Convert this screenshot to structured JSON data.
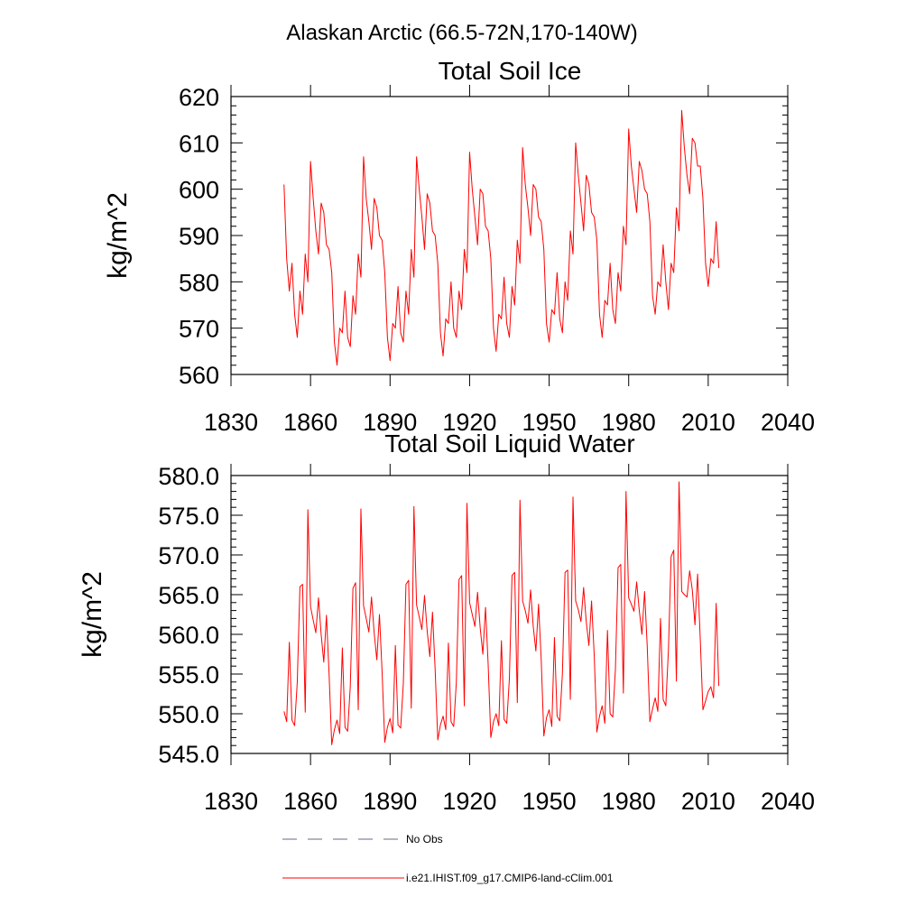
{
  "figure_title": "Alaskan Arctic (66.5-72N,170-140W)",
  "legend": {
    "entries": [
      {
        "label": "No Obs",
        "color": "#6a6a8a",
        "style": "dashed"
      },
      {
        "label": "i.e21.IHIST.f09_g17.CMIP6-land-cClim.001",
        "color": "#ff0000",
        "style": "solid"
      }
    ]
  },
  "chart_data": [
    {
      "type": "line",
      "title": "Total Soil Ice",
      "xlabel": "",
      "ylabel": "kg/m^2",
      "xlim": [
        1830,
        2040
      ],
      "ylim": [
        560,
        620
      ],
      "x_ticks": [
        1830,
        1860,
        1890,
        1920,
        1950,
        1980,
        2010,
        2040
      ],
      "x_tick_labels": [
        "1830",
        "1860",
        "1890",
        "1920",
        "1950",
        "1980",
        "2010",
        "2040"
      ],
      "y_ticks": [
        560,
        570,
        580,
        590,
        600,
        610,
        620
      ],
      "y_tick_labels": [
        "560",
        "570",
        "580",
        "590",
        "600",
        "610",
        "620"
      ],
      "grid": false,
      "series": [
        {
          "color": "#ff0000",
          "x": [
            1850,
            1851,
            1852,
            1853,
            1854,
            1855,
            1856,
            1857,
            1858,
            1859,
            1860,
            1861,
            1862,
            1863,
            1864,
            1865,
            1866,
            1867,
            1868,
            1869,
            1870,
            1871,
            1872,
            1873,
            1874,
            1875,
            1876,
            1877,
            1878,
            1879,
            1880,
            1881,
            1882,
            1883,
            1884,
            1885,
            1886,
            1887,
            1888,
            1889,
            1890,
            1891,
            1892,
            1893,
            1894,
            1895,
            1896,
            1897,
            1898,
            1899,
            1900,
            1901,
            1902,
            1903,
            1904,
            1905,
            1906,
            1907,
            1908,
            1909,
            1910,
            1911,
            1912,
            1913,
            1914,
            1915,
            1916,
            1917,
            1918,
            1919,
            1920,
            1921,
            1922,
            1923,
            1924,
            1925,
            1926,
            1927,
            1928,
            1929,
            1930,
            1931,
            1932,
            1933,
            1934,
            1935,
            1936,
            1937,
            1938,
            1939,
            1940,
            1941,
            1942,
            1943,
            1944,
            1945,
            1946,
            1947,
            1948,
            1949,
            1950,
            1951,
            1952,
            1953,
            1954,
            1955,
            1956,
            1957,
            1958,
            1959,
            1960,
            1961,
            1962,
            1963,
            1964,
            1965,
            1966,
            1967,
            1968,
            1969,
            1970,
            1971,
            1972,
            1973,
            1974,
            1975,
            1976,
            1977,
            1978,
            1979,
            1980,
            1981,
            1982,
            1983,
            1984,
            1985,
            1986,
            1987,
            1988,
            1989,
            1990,
            1991,
            1992,
            1993,
            1994,
            1995,
            1996,
            1997,
            1998,
            1999,
            2000,
            2001,
            2002,
            2003,
            2004,
            2005,
            2006,
            2007,
            2008,
            2009,
            2010,
            2011,
            2012,
            2013,
            2014
          ],
          "y": [
            601,
            585,
            578,
            584,
            573,
            568,
            578,
            573,
            586,
            580,
            606,
            598,
            591,
            586,
            597,
            595,
            588,
            587,
            582,
            567,
            562,
            570,
            569,
            578,
            568,
            566,
            577,
            573,
            586,
            581,
            607,
            598,
            593,
            587,
            598,
            596,
            590,
            589,
            582,
            568,
            563,
            571,
            570,
            579,
            569,
            567,
            578,
            573,
            587,
            581,
            607,
            600,
            594,
            587,
            599,
            597,
            591,
            590,
            584,
            569,
            564,
            572,
            571,
            580,
            570,
            568,
            578,
            574,
            587,
            582,
            608,
            600,
            594,
            588,
            600,
            599,
            592,
            591,
            585,
            570,
            565,
            573,
            572,
            581,
            571,
            568,
            579,
            575,
            589,
            584,
            609,
            601,
            596,
            590,
            601,
            600,
            594,
            593,
            587,
            571,
            567,
            574,
            573,
            582,
            572,
            569,
            580,
            576,
            591,
            586,
            610,
            603,
            597,
            591,
            603,
            601,
            595,
            594,
            589,
            573,
            568,
            576,
            575,
            584,
            574,
            571,
            582,
            578,
            592,
            588,
            613,
            605,
            600,
            595,
            606,
            604,
            600,
            599,
            593,
            577,
            573,
            580,
            579,
            588,
            580,
            574,
            584,
            582,
            596,
            591,
            617,
            609,
            603,
            599,
            611,
            610,
            605,
            605,
            598,
            584,
            579,
            585,
            584,
            593,
            583
          ]
        }
      ]
    },
    {
      "type": "line",
      "title": "Total Soil Liquid Water",
      "xlabel": "",
      "ylabel": "kg/m^2",
      "xlim": [
        1830,
        2040
      ],
      "ylim": [
        545,
        580
      ],
      "x_ticks": [
        1830,
        1860,
        1890,
        1920,
        1950,
        1980,
        2010,
        2040
      ],
      "x_tick_labels": [
        "1830",
        "1860",
        "1890",
        "1920",
        "1950",
        "1980",
        "2010",
        "2040"
      ],
      "y_ticks": [
        545,
        550,
        555,
        560,
        565,
        570,
        575,
        580
      ],
      "y_tick_labels": [
        "545.0",
        "550.0",
        "555.0",
        "560.0",
        "565.0",
        "570.0",
        "575.0",
        "580.0"
      ],
      "grid": false,
      "series": [
        {
          "color": "#ff0000",
          "x": [
            1850,
            1851,
            1852,
            1853,
            1854,
            1855,
            1856,
            1857,
            1858,
            1859,
            1860,
            1861,
            1862,
            1863,
            1864,
            1865,
            1866,
            1867,
            1868,
            1869,
            1870,
            1871,
            1872,
            1873,
            1874,
            1875,
            1876,
            1877,
            1878,
            1879,
            1880,
            1881,
            1882,
            1883,
            1884,
            1885,
            1886,
            1887,
            1888,
            1889,
            1890,
            1891,
            1892,
            1893,
            1894,
            1895,
            1896,
            1897,
            1898,
            1899,
            1900,
            1901,
            1902,
            1903,
            1904,
            1905,
            1906,
            1907,
            1908,
            1909,
            1910,
            1911,
            1912,
            1913,
            1914,
            1915,
            1916,
            1917,
            1918,
            1919,
            1920,
            1921,
            1922,
            1923,
            1924,
            1925,
            1926,
            1927,
            1928,
            1929,
            1930,
            1931,
            1932,
            1933,
            1934,
            1935,
            1936,
            1937,
            1938,
            1939,
            1940,
            1941,
            1942,
            1943,
            1944,
            1945,
            1946,
            1947,
            1948,
            1949,
            1950,
            1951,
            1952,
            1953,
            1954,
            1955,
            1956,
            1957,
            1958,
            1959,
            1960,
            1961,
            1962,
            1963,
            1964,
            1965,
            1966,
            1967,
            1968,
            1969,
            1970,
            1971,
            1972,
            1973,
            1974,
            1975,
            1976,
            1977,
            1978,
            1979,
            1980,
            1981,
            1982,
            1983,
            1984,
            1985,
            1986,
            1987,
            1988,
            1989,
            1990,
            1991,
            1992,
            1993,
            1994,
            1995,
            1996,
            1997,
            1998,
            1999,
            2000,
            2001,
            2002,
            2003,
            2004,
            2005,
            2006,
            2007,
            2008,
            2009,
            2010,
            2011,
            2012,
            2013,
            2014
          ],
          "y": [
            550.3,
            549.0,
            559.0,
            549.2,
            548.5,
            554.0,
            566.0,
            566.3,
            550.2,
            575.7,
            563.5,
            561.8,
            560.2,
            564.6,
            560.0,
            556.5,
            562.4,
            555.0,
            546.1,
            548.0,
            549.2,
            547.5,
            558.3,
            548.3,
            547.8,
            553.5,
            565.8,
            566.5,
            550.5,
            575.8,
            563.6,
            562.0,
            560.3,
            564.7,
            560.2,
            556.8,
            562.5,
            555.2,
            546.4,
            548.3,
            549.4,
            547.6,
            558.6,
            548.6,
            548.2,
            553.8,
            566.3,
            566.8,
            550.7,
            576.1,
            563.7,
            562.2,
            560.6,
            564.9,
            560.4,
            557.2,
            562.8,
            555.6,
            546.7,
            548.6,
            549.7,
            548.0,
            558.9,
            549.0,
            548.4,
            554.0,
            566.9,
            567.4,
            551.0,
            576.5,
            564.0,
            562.5,
            561.0,
            565.3,
            560.8,
            557.5,
            563.4,
            556.2,
            547.0,
            549.0,
            550.0,
            548.5,
            559.2,
            549.3,
            548.8,
            554.4,
            567.4,
            567.8,
            551.4,
            576.9,
            564.2,
            563.0,
            561.4,
            565.6,
            561.0,
            557.9,
            563.8,
            556.9,
            547.2,
            549.5,
            550.5,
            548.4,
            559.6,
            549.7,
            549.1,
            555.0,
            567.8,
            568.1,
            551.8,
            577.3,
            564.2,
            563.1,
            561.6,
            565.9,
            561.6,
            558.6,
            564.2,
            557.4,
            547.7,
            549.7,
            551.0,
            548.8,
            560.5,
            550.0,
            549.6,
            555.6,
            568.4,
            568.8,
            552.6,
            578.0,
            564.6,
            563.8,
            562.9,
            566.6,
            563.0,
            560.0,
            565.4,
            558.5,
            549.0,
            550.6,
            552.0,
            550.3,
            562.0,
            551.8,
            551.0,
            558.1,
            569.8,
            570.6,
            554.1,
            579.2,
            565.4,
            565.0,
            564.7,
            568.0,
            565.6,
            561.2,
            567.6,
            559.4,
            550.5,
            551.6,
            552.8,
            553.4,
            552.0,
            563.9,
            553.5
          ]
        }
      ]
    }
  ]
}
